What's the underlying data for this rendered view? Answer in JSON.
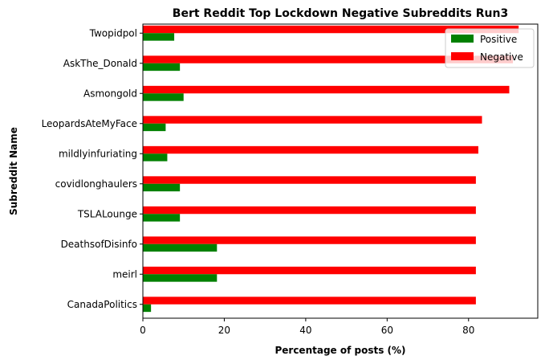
{
  "chart_data": {
    "type": "bar",
    "orientation": "horizontal",
    "title": "Bert Reddit Top Lockdown Negative Subreddits Run3",
    "xlabel": "Percentage of posts (%)",
    "ylabel": "Subreddit Name",
    "xlim": [
      0,
      97
    ],
    "xticks": [
      0,
      20,
      40,
      60,
      80
    ],
    "categories": [
      "Twopidpol",
      "AskThe_Donald",
      "Asmongold",
      "LeopardsAteMyFace",
      "mildlyinfuriating",
      "covidlonghaulers",
      "TSLALounge",
      "DeathsofDisinfo",
      "meirl",
      "CanadaPolitics"
    ],
    "series": [
      {
        "name": "Positive",
        "color": "#008000",
        "values": [
          7.7,
          9.1,
          10.0,
          5.6,
          6.0,
          9.1,
          9.1,
          18.2,
          18.2,
          2.0
        ]
      },
      {
        "name": "Negative",
        "color": "#ff0000",
        "values": [
          92.3,
          90.9,
          90.0,
          83.3,
          82.4,
          81.8,
          81.8,
          81.8,
          81.8,
          81.8
        ]
      }
    ],
    "legend_position": "top-right",
    "grid": false
  }
}
